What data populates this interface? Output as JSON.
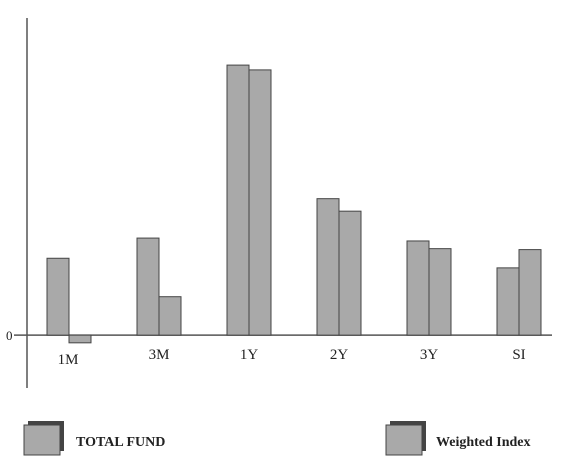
{
  "chart_data": {
    "type": "bar",
    "categories": [
      "1M",
      "3M",
      "1Y",
      "2Y",
      "3Y",
      "SI"
    ],
    "series": [
      {
        "name": "TOTAL FUND",
        "values": [
          8.0,
          10.1,
          28.1,
          14.2,
          9.8,
          7.0
        ]
      },
      {
        "name": "Weighted Index",
        "values": [
          -0.8,
          4.0,
          27.6,
          12.9,
          9.0,
          8.9
        ]
      }
    ],
    "ylim": [
      -5.5,
      33
    ],
    "yticks": [
      0
    ],
    "ytick_labels": [
      "0"
    ],
    "grid": false,
    "legend_position": "bottom",
    "colors": {
      "bar": "#a9a9a9",
      "bar_edge": "#444444",
      "axis": "#555555"
    }
  }
}
